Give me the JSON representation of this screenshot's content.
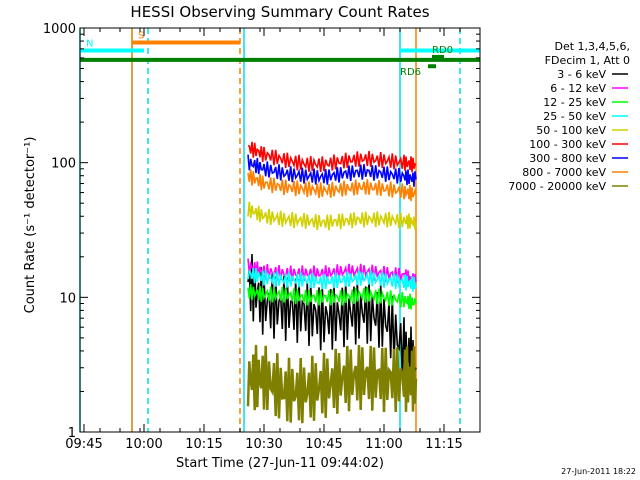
{
  "chart_data": {
    "type": "line",
    "title": "HESSI Observing Summary Count Rates",
    "xlabel": "Start Time (27-Jun-11 09:44:02)",
    "ylabel": "Count Rate (s⁻¹ detector⁻¹)",
    "yscale": "log",
    "ylim": [
      1,
      1000
    ],
    "xlim": [
      "09:44",
      "11:24"
    ],
    "x_ticks": [
      "09:45",
      "10:00",
      "10:15",
      "10:30",
      "10:45",
      "11:00",
      "11:15"
    ],
    "y_ticks": [
      "1",
      "10",
      "100",
      "1000"
    ],
    "grid": false,
    "legend_title": [
      "Det 1,3,4,5,6,",
      "FDecim 1, Att 0"
    ],
    "legend_position": "right",
    "timestamp": "27-Jun-2011 18:22",
    "series": [
      {
        "name": "3 - 6 keV",
        "color": "#000000",
        "x": [
          "10:26",
          "10:30",
          "10:35",
          "10:40",
          "10:45",
          "10:50",
          "10:55",
          "11:00",
          "11:05",
          "11:08"
        ],
        "values": [
          13,
          9,
          8.5,
          8,
          7,
          7.5,
          8,
          7,
          4,
          3
        ]
      },
      {
        "name": "6 - 12 keV",
        "color": "#ff00ff",
        "x": [
          "10:26",
          "10:30",
          "10:35",
          "10:40",
          "10:45",
          "10:50",
          "10:55",
          "11:00",
          "11:05",
          "11:08"
        ],
        "values": [
          17,
          15.5,
          15,
          15,
          15,
          15.5,
          15.5,
          15,
          14.5,
          13
        ]
      },
      {
        "name": "12 - 25 keV",
        "color": "#00ff00",
        "x": [
          "10:26",
          "10:30",
          "10:35",
          "10:40",
          "10:45",
          "10:50",
          "10:55",
          "11:00",
          "11:05",
          "11:08"
        ],
        "values": [
          11,
          10.5,
          10.5,
          10,
          10,
          10,
          10.5,
          10,
          9.5,
          9
        ]
      },
      {
        "name": "25 - 50 keV",
        "color": "#00ffff",
        "x": [
          "10:26",
          "10:30",
          "10:35",
          "10:40",
          "10:45",
          "10:50",
          "10:55",
          "11:00",
          "11:05",
          "11:08"
        ],
        "values": [
          15,
          14,
          13.5,
          13.5,
          13,
          13.5,
          14,
          13.5,
          13,
          12.5
        ]
      },
      {
        "name": "50 - 100 keV",
        "color": "#d0d000",
        "x": [
          "10:26",
          "10:30",
          "10:35",
          "10:40",
          "10:45",
          "10:50",
          "10:55",
          "11:00",
          "11:05",
          "11:08"
        ],
        "values": [
          45,
          40,
          38,
          37,
          36,
          37,
          38,
          38,
          37,
          36
        ]
      },
      {
        "name": "100 - 300 keV",
        "color": "#ff0000",
        "x": [
          "10:26",
          "10:30",
          "10:35",
          "10:40",
          "10:45",
          "10:50",
          "10:55",
          "11:00",
          "11:05",
          "11:08"
        ],
        "values": [
          130,
          115,
          105,
          98,
          97,
          103,
          107,
          104,
          100,
          96
        ]
      },
      {
        "name": "300 - 800 keV",
        "color": "#0000ff",
        "x": [
          "10:26",
          "10:30",
          "10:35",
          "10:40",
          "10:45",
          "10:50",
          "10:55",
          "11:00",
          "11:05",
          "11:08"
        ],
        "values": [
          100,
          90,
          83,
          80,
          78,
          83,
          86,
          83,
          79,
          75
        ]
      },
      {
        "name": "800 - 7000 keV",
        "color": "#ff8000",
        "x": [
          "10:26",
          "10:30",
          "10:35",
          "10:40",
          "10:45",
          "10:50",
          "10:55",
          "11:00",
          "11:05",
          "11:08"
        ],
        "values": [
          80,
          70,
          66,
          64,
          62,
          64,
          66,
          64,
          61,
          58
        ]
      },
      {
        "name": "7000 - 20000 keV",
        "color": "#808000",
        "x": [
          "10:26",
          "10:30",
          "10:35",
          "10:40",
          "10:45",
          "10:50",
          "10:55",
          "11:00",
          "11:05",
          "11:08"
        ],
        "values": [
          2.5,
          2.5,
          2,
          2,
          2.2,
          2.5,
          2.6,
          2.5,
          2.5,
          2.5
        ]
      }
    ],
    "markers": {
      "vertical_lines": [
        {
          "time": "09:44",
          "color": "#00e0e0",
          "style": "solid"
        },
        {
          "time": "09:57",
          "color": "#d08000",
          "style": "solid"
        },
        {
          "time": "10:01",
          "color": "#00e0e0",
          "style": "dashed"
        },
        {
          "time": "10:24",
          "color": "#ff8000",
          "style": "dashed"
        },
        {
          "time": "10:25",
          "color": "#00e0e0",
          "style": "solid"
        },
        {
          "time": "11:04",
          "color": "#00e0e0",
          "style": "solid"
        },
        {
          "time": "11:08",
          "color": "#ff8000",
          "style": "solid"
        },
        {
          "time": "11:19",
          "color": "#00e0e0",
          "style": "dashed"
        }
      ],
      "flag_bars": [
        {
          "label": "S",
          "color": "#ff8000",
          "start": "09:57",
          "end": "10:24",
          "level": 780
        },
        {
          "label": "N",
          "color": "#00ffff",
          "start": "09:44",
          "end": "10:00",
          "level": 680
        },
        {
          "label": "",
          "color": "#00ffff",
          "start": "11:04",
          "end": "11:24",
          "level": 680
        },
        {
          "label": "",
          "color": "#008000",
          "start": "09:44",
          "end": "11:24",
          "level": 580
        },
        {
          "label": "RD0",
          "color": "#008000",
          "start": "11:12",
          "end": "11:15",
          "level": 610
        },
        {
          "label": "RD6",
          "color": "#008000",
          "start": "11:11",
          "end": "11:13",
          "level": 520
        }
      ]
    }
  }
}
